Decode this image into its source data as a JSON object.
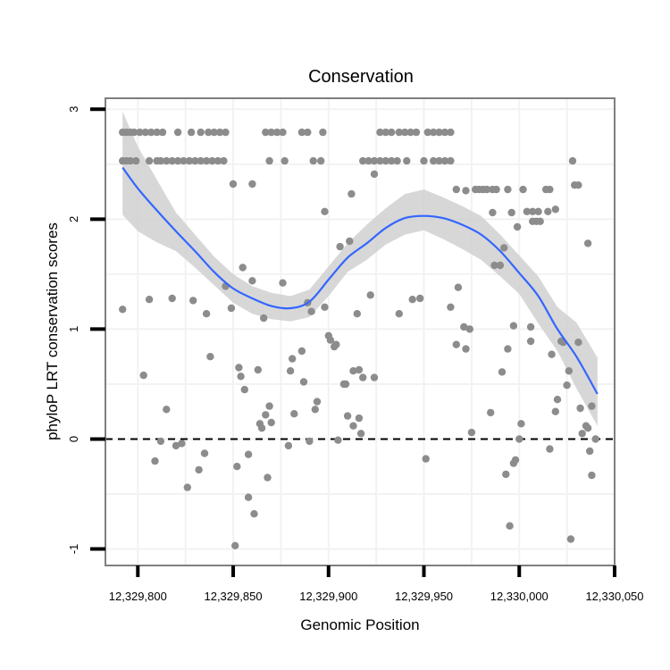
{
  "chart_data": {
    "type": "scatter",
    "title": "Conservation",
    "xlabel": "Genomic Position",
    "ylabel": "phyloP LRT conservation scores",
    "xlim": [
      12329783,
      12330050
    ],
    "ylim": [
      -1.15,
      3.1
    ],
    "x_ticks": [
      12329800,
      12329850,
      12329900,
      12329950,
      12330000,
      12330050
    ],
    "x_tick_labels": [
      "12,329,800",
      "12,329,850",
      "12,329,900",
      "12,329,950",
      "12,330,000",
      "12,330,050"
    ],
    "y_ticks": [
      -1,
      0,
      1,
      2,
      3
    ],
    "y_tick_labels": [
      "-1",
      "0",
      "1",
      "2",
      "3"
    ],
    "grid": true,
    "reference_line": {
      "y": 0,
      "style": "dashed"
    },
    "colors": {
      "points": "#8c8c8c",
      "smooth": "#3366ff",
      "ribbon": "#d0d0d0",
      "frame": "#7f7f7f",
      "grid": "#f2f2f2"
    },
    "points": [
      {
        "x": 12329792,
        "y": 2.79
      },
      {
        "x": 12329794,
        "y": 2.79
      },
      {
        "x": 12329796,
        "y": 2.79
      },
      {
        "x": 12329798,
        "y": 2.79
      },
      {
        "x": 12329801,
        "y": 2.79
      },
      {
        "x": 12329804,
        "y": 2.79
      },
      {
        "x": 12329807,
        "y": 2.79
      },
      {
        "x": 12329810,
        "y": 2.79
      },
      {
        "x": 12329813,
        "y": 2.79
      },
      {
        "x": 12329821,
        "y": 2.79
      },
      {
        "x": 12329828,
        "y": 2.79
      },
      {
        "x": 12329833,
        "y": 2.79
      },
      {
        "x": 12329837,
        "y": 2.79
      },
      {
        "x": 12329840,
        "y": 2.79
      },
      {
        "x": 12329843,
        "y": 2.79
      },
      {
        "x": 12329846,
        "y": 2.79
      },
      {
        "x": 12329867,
        "y": 2.79
      },
      {
        "x": 12329870,
        "y": 2.79
      },
      {
        "x": 12329873,
        "y": 2.79
      },
      {
        "x": 12329876,
        "y": 2.79
      },
      {
        "x": 12329886,
        "y": 2.79
      },
      {
        "x": 12329889,
        "y": 2.79
      },
      {
        "x": 12329897,
        "y": 2.79
      },
      {
        "x": 12329927,
        "y": 2.79
      },
      {
        "x": 12329930,
        "y": 2.79
      },
      {
        "x": 12329933,
        "y": 2.79
      },
      {
        "x": 12329937,
        "y": 2.79
      },
      {
        "x": 12329940,
        "y": 2.79
      },
      {
        "x": 12329943,
        "y": 2.79
      },
      {
        "x": 12329946,
        "y": 2.79
      },
      {
        "x": 12329952,
        "y": 2.79
      },
      {
        "x": 12329955,
        "y": 2.79
      },
      {
        "x": 12329958,
        "y": 2.79
      },
      {
        "x": 12329961,
        "y": 2.79
      },
      {
        "x": 12329964,
        "y": 2.79
      },
      {
        "x": 12329792,
        "y": 2.53
      },
      {
        "x": 12329794,
        "y": 2.53
      },
      {
        "x": 12329796,
        "y": 2.53
      },
      {
        "x": 12329799,
        "y": 2.53
      },
      {
        "x": 12329806,
        "y": 2.53
      },
      {
        "x": 12329810,
        "y": 2.53
      },
      {
        "x": 12329812,
        "y": 2.53
      },
      {
        "x": 12329815,
        "y": 2.53
      },
      {
        "x": 12329818,
        "y": 2.53
      },
      {
        "x": 12329821,
        "y": 2.53
      },
      {
        "x": 12329824,
        "y": 2.53
      },
      {
        "x": 12329827,
        "y": 2.53
      },
      {
        "x": 12329830,
        "y": 2.53
      },
      {
        "x": 12329833,
        "y": 2.53
      },
      {
        "x": 12329836,
        "y": 2.53
      },
      {
        "x": 12329839,
        "y": 2.53
      },
      {
        "x": 12329842,
        "y": 2.53
      },
      {
        "x": 12329845,
        "y": 2.53
      },
      {
        "x": 12329869,
        "y": 2.53
      },
      {
        "x": 12329877,
        "y": 2.53
      },
      {
        "x": 12329892,
        "y": 2.53
      },
      {
        "x": 12329896,
        "y": 2.53
      },
      {
        "x": 12329918,
        "y": 2.53
      },
      {
        "x": 12329921,
        "y": 2.53
      },
      {
        "x": 12329924,
        "y": 2.53
      },
      {
        "x": 12329927,
        "y": 2.53
      },
      {
        "x": 12329930,
        "y": 2.53
      },
      {
        "x": 12329933,
        "y": 2.53
      },
      {
        "x": 12329936,
        "y": 2.53
      },
      {
        "x": 12329941,
        "y": 2.53
      },
      {
        "x": 12329950,
        "y": 2.53
      },
      {
        "x": 12329955,
        "y": 2.53
      },
      {
        "x": 12329958,
        "y": 2.53
      },
      {
        "x": 12329961,
        "y": 2.53
      },
      {
        "x": 12329964,
        "y": 2.53
      },
      {
        "x": 12330028,
        "y": 2.53
      },
      {
        "x": 12329967,
        "y": 2.27
      },
      {
        "x": 12329977,
        "y": 2.27
      },
      {
        "x": 12329979,
        "y": 2.27
      },
      {
        "x": 12329981,
        "y": 2.27
      },
      {
        "x": 12329983,
        "y": 2.27
      },
      {
        "x": 12329986,
        "y": 2.27
      },
      {
        "x": 12329988,
        "y": 2.27
      },
      {
        "x": 12329994,
        "y": 2.27
      },
      {
        "x": 12330002,
        "y": 2.27
      },
      {
        "x": 12330014,
        "y": 2.27
      },
      {
        "x": 12330016,
        "y": 2.27
      },
      {
        "x": 12330029,
        "y": 2.31
      },
      {
        "x": 12330031,
        "y": 2.31
      },
      {
        "x": 12330004,
        "y": 2.07
      },
      {
        "x": 12330007,
        "y": 2.07
      },
      {
        "x": 12330010,
        "y": 2.07
      },
      {
        "x": 12330015,
        "y": 2.07
      },
      {
        "x": 12330019,
        "y": 2.09
      },
      {
        "x": 12330007,
        "y": 1.98
      },
      {
        "x": 12330009,
        "y": 1.98
      },
      {
        "x": 12330011,
        "y": 1.98
      },
      {
        "x": 12329999,
        "y": 1.93
      },
      {
        "x": 12329850,
        "y": 2.32
      },
      {
        "x": 12329860,
        "y": 2.32
      },
      {
        "x": 12329912,
        "y": 2.23
      },
      {
        "x": 12329924,
        "y": 2.41
      },
      {
        "x": 12329898,
        "y": 2.07
      },
      {
        "x": 12329972,
        "y": 2.26
      },
      {
        "x": 12329986,
        "y": 2.06
      },
      {
        "x": 12329996,
        "y": 2.06
      },
      {
        "x": 12329992,
        "y": 1.74
      },
      {
        "x": 12330036,
        "y": 1.78
      },
      {
        "x": 12329792,
        "y": 1.18
      },
      {
        "x": 12329803,
        "y": 0.58
      },
      {
        "x": 12329806,
        "y": 1.27
      },
      {
        "x": 12329809,
        "y": -0.2
      },
      {
        "x": 12329812,
        "y": -0.02
      },
      {
        "x": 12329815,
        "y": 0.27
      },
      {
        "x": 12329818,
        "y": 1.28
      },
      {
        "x": 12329820,
        "y": -0.06
      },
      {
        "x": 12329823,
        "y": -0.04
      },
      {
        "x": 12329826,
        "y": -0.44
      },
      {
        "x": 12329829,
        "y": 1.26
      },
      {
        "x": 12329832,
        "y": -0.28
      },
      {
        "x": 12329835,
        "y": -0.13
      },
      {
        "x": 12329836,
        "y": 1.14
      },
      {
        "x": 12329838,
        "y": 0.75
      },
      {
        "x": 12329846,
        "y": 1.39
      },
      {
        "x": 12329849,
        "y": 1.19
      },
      {
        "x": 12329851,
        "y": -0.97
      },
      {
        "x": 12329852,
        "y": -0.25
      },
      {
        "x": 12329853,
        "y": 0.65
      },
      {
        "x": 12329854,
        "y": 0.57
      },
      {
        "x": 12329855,
        "y": 1.56
      },
      {
        "x": 12329856,
        "y": 0.45
      },
      {
        "x": 12329858,
        "y": -0.53
      },
      {
        "x": 12329858,
        "y": -0.14
      },
      {
        "x": 12329860,
        "y": 1.44
      },
      {
        "x": 12329861,
        "y": -0.68
      },
      {
        "x": 12329863,
        "y": 0.63
      },
      {
        "x": 12329864,
        "y": 0.14
      },
      {
        "x": 12329865,
        "y": 0.1
      },
      {
        "x": 12329866,
        "y": 1.1
      },
      {
        "x": 12329867,
        "y": 0.22
      },
      {
        "x": 12329868,
        "y": -0.35
      },
      {
        "x": 12329869,
        "y": 0.3
      },
      {
        "x": 12329870,
        "y": 0.15
      },
      {
        "x": 12329876,
        "y": 1.42
      },
      {
        "x": 12329879,
        "y": -0.06
      },
      {
        "x": 12329880,
        "y": 0.62
      },
      {
        "x": 12329881,
        "y": 0.73
      },
      {
        "x": 12329882,
        "y": 0.23
      },
      {
        "x": 12329886,
        "y": 0.8
      },
      {
        "x": 12329887,
        "y": 0.52
      },
      {
        "x": 12329889,
        "y": 1.24
      },
      {
        "x": 12329890,
        "y": -0.02
      },
      {
        "x": 12329891,
        "y": 1.16
      },
      {
        "x": 12329893,
        "y": 0.27
      },
      {
        "x": 12329894,
        "y": 0.34
      },
      {
        "x": 12329898,
        "y": 1.2
      },
      {
        "x": 12329900,
        "y": 0.94
      },
      {
        "x": 12329901,
        "y": 0.9
      },
      {
        "x": 12329903,
        "y": 0.84
      },
      {
        "x": 12329904,
        "y": 0.86
      },
      {
        "x": 12329905,
        "y": -0.01
      },
      {
        "x": 12329906,
        "y": 1.75
      },
      {
        "x": 12329908,
        "y": 0.5
      },
      {
        "x": 12329909,
        "y": 0.5
      },
      {
        "x": 12329910,
        "y": 0.21
      },
      {
        "x": 12329911,
        "y": 1.8
      },
      {
        "x": 12329913,
        "y": 0.62
      },
      {
        "x": 12329913,
        "y": 0.12
      },
      {
        "x": 12329915,
        "y": 1.14
      },
      {
        "x": 12329916,
        "y": 0.19
      },
      {
        "x": 12329916,
        "y": 0.63
      },
      {
        "x": 12329917,
        "y": 0.05
      },
      {
        "x": 12329918,
        "y": 0.56
      },
      {
        "x": 12329922,
        "y": 1.31
      },
      {
        "x": 12329924,
        "y": 0.56
      },
      {
        "x": 12329937,
        "y": 1.14
      },
      {
        "x": 12329944,
        "y": 1.27
      },
      {
        "x": 12329948,
        "y": 1.28
      },
      {
        "x": 12329951,
        "y": -0.18
      },
      {
        "x": 12329964,
        "y": 1.2
      },
      {
        "x": 12329967,
        "y": 0.86
      },
      {
        "x": 12329968,
        "y": 1.38
      },
      {
        "x": 12329971,
        "y": 1.02
      },
      {
        "x": 12329972,
        "y": 0.82
      },
      {
        "x": 12329975,
        "y": 0.06
      },
      {
        "x": 12329974,
        "y": 1.0
      },
      {
        "x": 12329985,
        "y": 0.24
      },
      {
        "x": 12329987,
        "y": 1.58
      },
      {
        "x": 12329990,
        "y": 1.58
      },
      {
        "x": 12329991,
        "y": 0.61
      },
      {
        "x": 12329993,
        "y": -0.32
      },
      {
        "x": 12329994,
        "y": 0.82
      },
      {
        "x": 12329995,
        "y": -0.79
      },
      {
        "x": 12329997,
        "y": 1.03
      },
      {
        "x": 12329997,
        "y": -0.22
      },
      {
        "x": 12329998,
        "y": -0.19
      },
      {
        "x": 12330000,
        "y": 0.0
      },
      {
        "x": 12330001,
        "y": 0.14
      },
      {
        "x": 12330006,
        "y": 1.02
      },
      {
        "x": 12330006,
        "y": 0.89
      },
      {
        "x": 12330016,
        "y": -0.09
      },
      {
        "x": 12330017,
        "y": 0.77
      },
      {
        "x": 12330019,
        "y": 0.25
      },
      {
        "x": 12330020,
        "y": 0.36
      },
      {
        "x": 12330022,
        "y": 0.89
      },
      {
        "x": 12330023,
        "y": 0.88
      },
      {
        "x": 12330025,
        "y": 0.49
      },
      {
        "x": 12330026,
        "y": 0.62
      },
      {
        "x": 12330027,
        "y": -0.91
      },
      {
        "x": 12330031,
        "y": 0.88
      },
      {
        "x": 12330032,
        "y": 0.28
      },
      {
        "x": 12330033,
        "y": 0.05
      },
      {
        "x": 12330035,
        "y": 0.12
      },
      {
        "x": 12330036,
        "y": 0.1
      },
      {
        "x": 12330037,
        "y": -0.11
      },
      {
        "x": 12330038,
        "y": -0.33
      },
      {
        "x": 12330038,
        "y": 0.3
      },
      {
        "x": 12330040,
        "y": 0.0
      }
    ],
    "smooth": {
      "x": [
        12329792,
        12329800,
        12329810,
        12329820,
        12329830,
        12329840,
        12329850,
        12329860,
        12329870,
        12329880,
        12329890,
        12329900,
        12329910,
        12329920,
        12329930,
        12329940,
        12329950,
        12329960,
        12329970,
        12329980,
        12329990,
        12330000,
        12330010,
        12330020,
        12330030,
        12330041
      ],
      "y": [
        2.47,
        2.28,
        2.08,
        1.89,
        1.71,
        1.52,
        1.37,
        1.28,
        1.21,
        1.19,
        1.25,
        1.45,
        1.65,
        1.78,
        1.92,
        2.01,
        2.03,
        2.01,
        1.95,
        1.86,
        1.71,
        1.51,
        1.3,
        1.0,
        0.75,
        0.41
      ],
      "upper": [
        2.98,
        2.66,
        2.36,
        2.06,
        1.86,
        1.66,
        1.5,
        1.39,
        1.33,
        1.3,
        1.36,
        1.57,
        1.78,
        1.95,
        2.1,
        2.23,
        2.27,
        2.2,
        2.12,
        2.03,
        1.86,
        1.67,
        1.48,
        1.2,
        1.06,
        0.74
      ],
      "lower": [
        2.04,
        1.89,
        1.79,
        1.71,
        1.56,
        1.4,
        1.24,
        1.14,
        1.09,
        1.07,
        1.11,
        1.3,
        1.52,
        1.63,
        1.77,
        1.86,
        1.9,
        1.82,
        1.73,
        1.63,
        1.48,
        1.32,
        1.05,
        0.8,
        0.46,
        0.12
      ]
    }
  }
}
